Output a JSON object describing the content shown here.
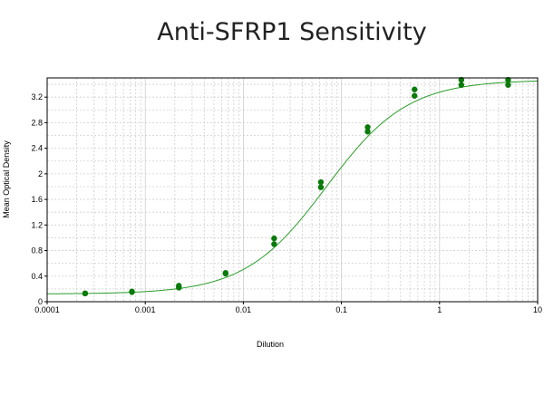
{
  "chart_data": {
    "type": "scatter",
    "title": "Anti-SFRP1 Sensitivity",
    "xlabel": "Dilution",
    "ylabel": "Mean Optical Density",
    "xscale": "log",
    "xlim": [
      0.0001,
      10
    ],
    "ylim": [
      0,
      3.5
    ],
    "x_ticks": [
      "0.0001",
      "0.001",
      "0.01",
      "0.1",
      "1",
      "10"
    ],
    "y_ticks": [
      "0",
      "0.4",
      "0.8",
      "1.2",
      "1.6",
      "2",
      "2.4",
      "2.8",
      "3.2"
    ],
    "grid": true,
    "legend": "none",
    "colors": {
      "series": "#0a7a0a",
      "fit": "#2a9d2a",
      "grid": "#cfcfcf"
    },
    "series": [
      {
        "x": [
          0.000244,
          0.000244,
          0.000732,
          0.000732,
          0.0022,
          0.0022,
          0.00659,
          0.00659,
          0.0206,
          0.0206,
          0.0617,
          0.0617,
          0.185,
          0.185,
          0.556,
          0.556,
          1.667,
          1.667,
          5,
          5
        ],
        "y": [
          0.13,
          0.13,
          0.15,
          0.16,
          0.22,
          0.25,
          0.44,
          0.45,
          0.9,
          0.99,
          1.79,
          1.87,
          2.66,
          2.73,
          3.22,
          3.32,
          3.39,
          3.47,
          3.39,
          3.47
        ]
      }
    ],
    "fit": {
      "type": "4PL",
      "bottom": 0.12,
      "top": 3.47,
      "ec50": 0.07,
      "hill": 1.05
    }
  }
}
